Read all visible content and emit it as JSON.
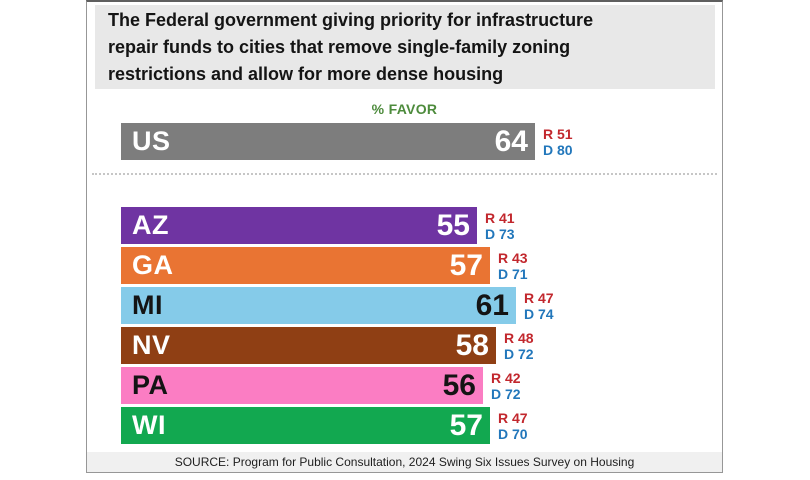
{
  "title_lines": [
    "The Federal government giving priority for infrastructure",
    "repair funds to cities that remove single-family zoning",
    "restrictions and allow for more dense housing"
  ],
  "favor_label": "% FAVOR",
  "source": "SOURCE: Program for Public Consultation, 2024 Swing Six Issues Survey on Housing",
  "colors": {
    "favor_green": "#4d8b3c",
    "rep_red": "#c2272d",
    "dem_blue": "#2277bb",
    "title_bg": "#e8e8e8",
    "source_bg": "#f0f0f0",
    "panel_border": "#979797"
  },
  "chart_data": {
    "type": "bar",
    "orientation": "horizontal",
    "title": "The Federal government giving priority for infrastructure repair funds to cities that remove single-family zoning restrictions and allow for more dense housing",
    "value_label": "% FAVOR",
    "value_range": [
      0,
      64
    ],
    "rep_prefix": "R",
    "dem_prefix": "D",
    "rows": [
      {
        "label": "US",
        "value": 64,
        "rep": 51,
        "dem": 80,
        "color": "#7d7d7d",
        "text_color": "#ffffff",
        "group": "national"
      },
      {
        "label": "AZ",
        "value": 55,
        "rep": 41,
        "dem": 73,
        "color": "#6f34a2",
        "text_color": "#ffffff",
        "group": "state"
      },
      {
        "label": "GA",
        "value": 57,
        "rep": 43,
        "dem": 71,
        "color": "#e97433",
        "text_color": "#ffffff",
        "group": "state"
      },
      {
        "label": "MI",
        "value": 61,
        "rep": 47,
        "dem": 74,
        "color": "#85cbe9",
        "text_color": "#141414",
        "group": "state"
      },
      {
        "label": "NV",
        "value": 58,
        "rep": 48,
        "dem": 72,
        "color": "#8f3f14",
        "text_color": "#ffffff",
        "group": "state"
      },
      {
        "label": "PA",
        "value": 56,
        "rep": 42,
        "dem": 72,
        "color": "#fb7dc3",
        "text_color": "#141414",
        "group": "state"
      },
      {
        "label": "WI",
        "value": 57,
        "rep": 47,
        "dem": 70,
        "color": "#12a850",
        "text_color": "#ffffff",
        "group": "state"
      }
    ],
    "source": "SOURCE: Program for Public Consultation, 2024 Swing Six Issues Survey on Housing"
  }
}
